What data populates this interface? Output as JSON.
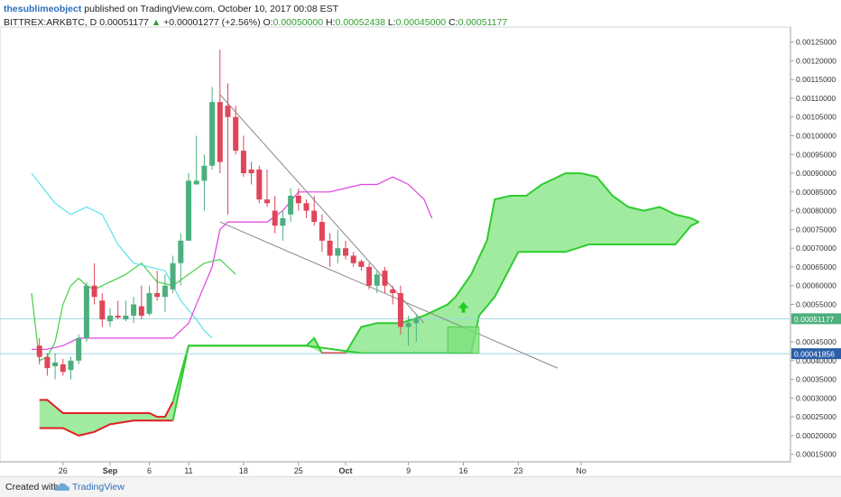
{
  "header": {
    "author": "thesublimeobject",
    "published": "published on TradingView.com, October 10, 2017 00:08 EST",
    "symbol": "BITTREX:ARKBTC, D",
    "last": "0.00051177",
    "change_arrow": "▲",
    "change": "+0.00001277 (+2.56%)",
    "o_label": "O:",
    "o": "0.00050000",
    "h_label": "H:",
    "h": "0.00052438",
    "l_label": "L:",
    "l": "0.00045000",
    "c_label": "C:",
    "c": "0.00051177"
  },
  "footer": {
    "created": "Created with",
    "brand": "TradingView",
    "logo_icon": "tradingview-cloud-icon"
  },
  "colors": {
    "up": "#4caf7d",
    "down": "#e0455a",
    "tenkan": "#5ce1f0",
    "kijun": "#e040e0",
    "span_green": "#2ecc2e",
    "span_red": "#e02020",
    "cloud_green": "#8fe88f",
    "cloud_red": "#f5a6a6"
  },
  "chart_data": {
    "type": "candlestick",
    "x_labels": [
      "26",
      "Sep",
      "6",
      "11",
      "18",
      "25",
      "Oct",
      "9",
      "16",
      "23",
      "No"
    ],
    "x_label_days": [
      -6,
      0,
      5,
      10,
      17,
      24,
      30,
      38,
      45,
      52,
      60
    ],
    "y_ticks": [
      "0.00015000",
      "0.00020000",
      "0.00025000",
      "0.00030000",
      "0.00035000",
      "0.00040000",
      "0.00045000",
      "0.00055000",
      "0.00060000",
      "0.00065000",
      "0.00070000",
      "0.00075000",
      "0.00080000",
      "0.00085000",
      "0.00090000",
      "0.00095000",
      "0.00100000",
      "0.00105000",
      "0.00110000",
      "0.00115000",
      "0.00120000",
      "0.00125000"
    ],
    "ylim": [
      0.00013,
      0.00129
    ],
    "price_label": "0.00051177",
    "level_label": "0.00041856",
    "candles": [
      {
        "d": -9,
        "o": 0.00044,
        "h": 0.00046,
        "l": 0.00039,
        "c": 0.00041
      },
      {
        "d": -8,
        "o": 0.00041,
        "h": 0.00042,
        "l": 0.00036,
        "c": 0.00038
      },
      {
        "d": -7,
        "o": 0.000385,
        "h": 0.00042,
        "l": 0.00035,
        "c": 0.000395
      },
      {
        "d": -6,
        "o": 0.00039,
        "h": 0.000405,
        "l": 0.00036,
        "c": 0.00037
      },
      {
        "d": -5,
        "o": 0.000375,
        "h": 0.00041,
        "l": 0.00035,
        "c": 0.0004
      },
      {
        "d": -4,
        "o": 0.0004,
        "h": 0.00047,
        "l": 0.00039,
        "c": 0.00046
      },
      {
        "d": -3,
        "o": 0.00046,
        "h": 0.00061,
        "l": 0.00045,
        "c": 0.0006
      },
      {
        "d": -2,
        "o": 0.0006,
        "h": 0.00066,
        "l": 0.00055,
        "c": 0.00057
      },
      {
        "d": -1,
        "o": 0.00056,
        "h": 0.00058,
        "l": 0.00049,
        "c": 0.00051
      },
      {
        "d": 0,
        "o": 0.000505,
        "h": 0.00054,
        "l": 0.00049,
        "c": 0.00052
      },
      {
        "d": 1,
        "o": 0.00052,
        "h": 0.00056,
        "l": 0.00051,
        "c": 0.000515
      },
      {
        "d": 2,
        "o": 0.00051,
        "h": 0.00056,
        "l": 0.000505,
        "c": 0.00052
      },
      {
        "d": 3,
        "o": 0.00052,
        "h": 0.00057,
        "l": 0.0005,
        "c": 0.00055
      },
      {
        "d": 4,
        "o": 0.000545,
        "h": 0.0006,
        "l": 0.00051,
        "c": 0.00052
      },
      {
        "d": 5,
        "o": 0.000525,
        "h": 0.0006,
        "l": 0.00052,
        "c": 0.00058
      },
      {
        "d": 6,
        "o": 0.00058,
        "h": 0.00064,
        "l": 0.00056,
        "c": 0.00057
      },
      {
        "d": 7,
        "o": 0.00057,
        "h": 0.00063,
        "l": 0.00053,
        "c": 0.0006
      },
      {
        "d": 8,
        "o": 0.00059,
        "h": 0.00068,
        "l": 0.00058,
        "c": 0.00066
      },
      {
        "d": 9,
        "o": 0.00066,
        "h": 0.00074,
        "l": 0.0006,
        "c": 0.00072
      },
      {
        "d": 10,
        "o": 0.00072,
        "h": 0.0009,
        "l": 0.00072,
        "c": 0.00088
      },
      {
        "d": 11,
        "o": 0.00087,
        "h": 0.001,
        "l": 0.00087,
        "c": 0.00088
      },
      {
        "d": 12,
        "o": 0.00088,
        "h": 0.00095,
        "l": 0.0008,
        "c": 0.00092
      },
      {
        "d": 13,
        "o": 0.00092,
        "h": 0.00113,
        "l": 0.00091,
        "c": 0.00109
      },
      {
        "d": 14,
        "o": 0.00109,
        "h": 0.00123,
        "l": 0.0009,
        "c": 0.00093
      },
      {
        "d": 15,
        "o": 0.00108,
        "h": 0.00114,
        "l": 0.00079,
        "c": 0.00105
      },
      {
        "d": 16,
        "o": 0.00105,
        "h": 0.00108,
        "l": 0.00095,
        "c": 0.00096
      },
      {
        "d": 17,
        "o": 0.00096,
        "h": 0.001,
        "l": 0.00089,
        "c": 0.0009
      },
      {
        "d": 18,
        "o": 0.00091,
        "h": 0.00093,
        "l": 0.00087,
        "c": 0.0009
      },
      {
        "d": 19,
        "o": 0.00091,
        "h": 0.00092,
        "l": 0.00082,
        "c": 0.00083
      },
      {
        "d": 20,
        "o": 0.00083,
        "h": 0.00091,
        "l": 0.00081,
        "c": 0.00082
      },
      {
        "d": 21,
        "o": 0.0008,
        "h": 0.00084,
        "l": 0.00074,
        "c": 0.00076
      },
      {
        "d": 22,
        "o": 0.00076,
        "h": 0.0008,
        "l": 0.00072,
        "c": 0.00078
      },
      {
        "d": 23,
        "o": 0.00079,
        "h": 0.00086,
        "l": 0.00077,
        "c": 0.00084
      },
      {
        "d": 24,
        "o": 0.00084,
        "h": 0.00086,
        "l": 0.0008,
        "c": 0.00082
      },
      {
        "d": 25,
        "o": 0.00082,
        "h": 0.00083,
        "l": 0.00078,
        "c": 0.0008
      },
      {
        "d": 26,
        "o": 0.0008,
        "h": 0.00084,
        "l": 0.00076,
        "c": 0.00077
      },
      {
        "d": 27,
        "o": 0.00077,
        "h": 0.00079,
        "l": 0.00069,
        "c": 0.00072
      },
      {
        "d": 28,
        "o": 0.00072,
        "h": 0.00074,
        "l": 0.00065,
        "c": 0.00068
      },
      {
        "d": 29,
        "o": 0.00068,
        "h": 0.00075,
        "l": 0.00066,
        "c": 0.0007
      },
      {
        "d": 30,
        "o": 0.0007,
        "h": 0.00072,
        "l": 0.00067,
        "c": 0.00068
      },
      {
        "d": 31,
        "o": 0.00068,
        "h": 0.00069,
        "l": 0.00065,
        "c": 0.00066
      },
      {
        "d": 32,
        "o": 0.000665,
        "h": 0.00067,
        "l": 0.00064,
        "c": 0.00065
      },
      {
        "d": 33,
        "o": 0.00065,
        "h": 0.00066,
        "l": 0.00059,
        "c": 0.0006
      },
      {
        "d": 34,
        "o": 0.0006,
        "h": 0.00064,
        "l": 0.00058,
        "c": 0.00063
      },
      {
        "d": 35,
        "o": 0.00064,
        "h": 0.00065,
        "l": 0.00058,
        "c": 0.0006
      },
      {
        "d": 36,
        "o": 0.00059,
        "h": 0.0006,
        "l": 0.00055,
        "c": 0.00058
      },
      {
        "d": 37,
        "o": 0.00058,
        "h": 0.0006,
        "l": 0.00047,
        "c": 0.00049
      },
      {
        "d": 38,
        "o": 0.00049,
        "h": 0.00052,
        "l": 0.00044,
        "c": 0.0005
      },
      {
        "d": 39,
        "o": 0.0005,
        "h": 0.000524,
        "l": 0.00045,
        "c": 0.000512
      }
    ],
    "tenkan": [
      [
        -10,
        0.0009
      ],
      [
        -7,
        0.00082
      ],
      [
        -5,
        0.00079
      ],
      [
        -3,
        0.00081
      ],
      [
        -1,
        0.00079
      ],
      [
        1,
        0.00071
      ],
      [
        3,
        0.00066
      ],
      [
        5,
        0.00065
      ],
      [
        7,
        0.00064
      ],
      [
        8,
        0.0006
      ],
      [
        9,
        0.00056
      ],
      [
        11,
        0.00051
      ],
      [
        12,
        0.00048
      ],
      [
        13,
        0.00046
      ]
    ],
    "kijun": [
      [
        -10,
        0.00043
      ],
      [
        -8,
        0.00043
      ],
      [
        -6,
        0.00044
      ],
      [
        -4,
        0.00046
      ],
      [
        8,
        0.00046
      ],
      [
        10,
        0.0005
      ],
      [
        12,
        0.0006
      ],
      [
        13,
        0.00065
      ],
      [
        14,
        0.00075
      ],
      [
        15,
        0.00077
      ],
      [
        20,
        0.00077
      ],
      [
        22,
        0.0008
      ],
      [
        24,
        0.00085
      ],
      [
        26,
        0.00085
      ],
      [
        28,
        0.00085
      ],
      [
        32,
        0.00087
      ],
      [
        34,
        0.00087
      ],
      [
        36,
        0.00089
      ],
      [
        38,
        0.00087
      ],
      [
        40,
        0.00083
      ],
      [
        41,
        0.00078
      ]
    ],
    "chikou": [
      [
        -10,
        0.00058
      ],
      [
        -9,
        0.0004
      ],
      [
        -8,
        0.00041
      ],
      [
        -7,
        0.00045
      ],
      [
        -6,
        0.00055
      ],
      [
        -5,
        0.0006
      ],
      [
        -4,
        0.00062
      ],
      [
        -3,
        0.0006
      ],
      [
        -2,
        0.00059
      ],
      [
        -1,
        0.0006
      ],
      [
        0,
        0.00061
      ],
      [
        2,
        0.00063
      ],
      [
        4,
        0.00066
      ],
      [
        6,
        0.00061
      ],
      [
        8,
        0.0006
      ],
      [
        10,
        0.00063
      ],
      [
        12,
        0.00066
      ],
      [
        14,
        0.00067
      ],
      [
        16,
        0.00063
      ]
    ],
    "kumo_a": [
      [
        -9,
        0.000295
      ],
      [
        -8,
        0.000295
      ],
      [
        -6,
        0.00026
      ],
      [
        -4,
        0.00026
      ],
      [
        5,
        0.00026
      ],
      [
        6,
        0.00025
      ],
      [
        7,
        0.00025
      ],
      [
        8,
        0.00029
      ],
      [
        10,
        0.00044
      ],
      [
        25,
        0.00044
      ],
      [
        26,
        0.00046
      ],
      [
        27,
        0.00042
      ],
      [
        28,
        0.00042
      ],
      [
        30,
        0.00042
      ],
      [
        32,
        0.00049
      ],
      [
        34,
        0.0005
      ],
      [
        37,
        0.0005
      ],
      [
        40,
        0.00052
      ],
      [
        43,
        0.00055
      ],
      [
        44,
        0.00057
      ],
      [
        46,
        0.00063
      ],
      [
        48,
        0.00072
      ],
      [
        49,
        0.00083
      ],
      [
        51,
        0.00084
      ],
      [
        53,
        0.00084
      ],
      [
        55,
        0.00087
      ],
      [
        58,
        0.0009
      ],
      [
        60,
        0.0009
      ],
      [
        62,
        0.00089
      ],
      [
        64,
        0.00084
      ],
      [
        66,
        0.00081
      ],
      [
        68,
        0.0008
      ],
      [
        70,
        0.00081
      ],
      [
        72,
        0.00079
      ],
      [
        74,
        0.00078
      ],
      [
        75,
        0.00077
      ]
    ],
    "kumo_b": [
      [
        -9,
        0.00022
      ],
      [
        -6,
        0.00022
      ],
      [
        -4,
        0.0002
      ],
      [
        -2,
        0.00021
      ],
      [
        0,
        0.00023
      ],
      [
        3,
        0.00024
      ],
      [
        8,
        0.00024
      ],
      [
        10,
        0.00044
      ],
      [
        25,
        0.00044
      ],
      [
        27,
        0.00042
      ],
      [
        30,
        0.00042
      ],
      [
        32,
        0.00042
      ],
      [
        46,
        0.00042
      ],
      [
        47,
        0.00052
      ],
      [
        49,
        0.00057
      ],
      [
        51,
        0.00065
      ],
      [
        52,
        0.00069
      ],
      [
        58,
        0.00069
      ],
      [
        61,
        0.00071
      ],
      [
        64,
        0.00071
      ],
      [
        72,
        0.00071
      ],
      [
        74,
        0.00076
      ],
      [
        75,
        0.00077
      ]
    ],
    "trendlines": [
      {
        "from": [
          14,
          0.00111
        ],
        "to": [
          40,
          0.0005
        ]
      },
      {
        "from": [
          14,
          0.00077
        ],
        "to": [
          57,
          0.00038
        ]
      }
    ],
    "target_box": {
      "d1": 43,
      "d2": 47,
      "y1": 0.00042,
      "y2": 0.00049
    },
    "target_arrow": {
      "d": 45,
      "y": 0.00054
    },
    "horizontal_levels": [
      0.00051177,
      0.00041856
    ]
  }
}
